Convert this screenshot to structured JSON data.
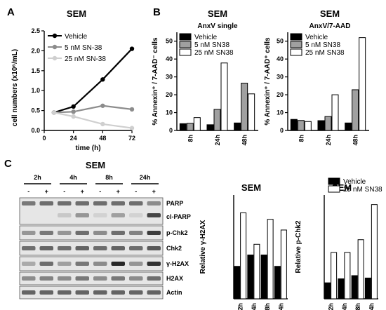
{
  "panels": {
    "A": {
      "letter": "A",
      "chart_data": {
        "type": "line",
        "title": "SEM",
        "xlabel": "time (h)",
        "ylabel": "cell numbers (x10⁶/mL)",
        "x": [
          8,
          24,
          48,
          72
        ],
        "xticks": [
          "0",
          "24",
          "48",
          "72"
        ],
        "yticks": [
          "0.0",
          "0.5",
          "1.0",
          "1.5",
          "2.0",
          "2.5"
        ],
        "xlim": [
          0,
          72
        ],
        "ylim": [
          0,
          2.5
        ],
        "legend_position": "top-left",
        "series": [
          {
            "name": "Vehicle",
            "values": [
              0.45,
              0.6,
              1.28,
              2.05
            ],
            "color": "#000000",
            "marker": "circle"
          },
          {
            "name": "5 nM SN-38",
            "values": [
              0.45,
              0.47,
              0.62,
              0.53
            ],
            "color": "#8c8c8c",
            "marker": "circle"
          },
          {
            "name": "25 nM SN-38",
            "values": [
              0.45,
              0.35,
              0.16,
              0.06
            ],
            "color": "#cfcfcf",
            "marker": "circle"
          }
        ]
      }
    },
    "B": {
      "letter": "B",
      "charts": [
        {
          "title": "SEM",
          "subtitle": "AnxV single",
          "chart_data": {
            "type": "bar",
            "ylabel": "% Annexin⁺ / 7-AAD⁻ cells",
            "categories": [
              "8h",
              "24h",
              "48h"
            ],
            "yticks": [
              "0",
              "10",
              "20",
              "30",
              "40",
              "50"
            ],
            "ylim": [
              0,
              55
            ],
            "legend_position": "top-left",
            "series": [
              {
                "name": "Vehicle",
                "values": [
                  3.8,
                  3.2,
                  4.2
                ],
                "color": "#000000"
              },
              {
                "name": "5 nM SN38",
                "values": [
                  4.0,
                  11.8,
                  26.5
                ],
                "color": "#a0a0a0"
              },
              {
                "name": "25 nM SN38",
                "values": [
                  7.2,
                  37.8,
                  20.5
                ],
                "color": "#ffffff"
              }
            ]
          }
        },
        {
          "title": "SEM",
          "subtitle": "AnxV/7-AAD",
          "chart_data": {
            "type": "bar",
            "ylabel": "% Annexin⁺ / 7-AAD⁺ cells",
            "categories": [
              "8h",
              "24h",
              "48h"
            ],
            "yticks": [
              "0",
              "10",
              "20",
              "30",
              "40",
              "50"
            ],
            "ylim": [
              0,
              55
            ],
            "legend_position": "top-left",
            "series": [
              {
                "name": "Vehicle",
                "values": [
                  6.2,
                  5.5,
                  4.2
                ],
                "color": "#000000"
              },
              {
                "name": "5 nM SN38",
                "values": [
                  5.6,
                  7.8,
                  22.8
                ],
                "color": "#a0a0a0"
              },
              {
                "name": "25 nM SN38",
                "values": [
                  5.0,
                  20.0,
                  52.0
                ],
                "color": "#ffffff"
              }
            ]
          }
        }
      ]
    },
    "C": {
      "letter": "C",
      "blot": {
        "title": "SEM",
        "timepoints": [
          "2h",
          "4h",
          "8h",
          "24h"
        ],
        "lane_signs": [
          "-",
          "+",
          "-",
          "+",
          "-",
          "+",
          "-",
          "+"
        ],
        "bands": [
          "PARP",
          "cl-PARP",
          "p-Chk2",
          "Chk2",
          "γ-H2AX",
          "H2AX",
          "Actin"
        ]
      },
      "charts": [
        {
          "title": "SEM",
          "chart_data": {
            "type": "bar",
            "ylabel": "Relative γ-H2AX",
            "categories": [
              "2h",
              "4h",
              "8h",
              "24h"
            ],
            "ylim": [
              0,
              3.2
            ],
            "series": [
              {
                "name": "Vehicle",
                "values": [
                  1.0,
                  1.35,
                  1.35,
                  1.0
                ],
                "color": "#000000"
              },
              {
                "name": "25 nM SN38",
                "values": [
                  2.65,
                  1.68,
                  2.45,
                  2.12
                ],
                "color": "#ffffff"
              }
            ]
          }
        },
        {
          "title": "SEM",
          "chart_data": {
            "type": "bar",
            "ylabel": "Relative p-Chk2",
            "categories": [
              "2h",
              "4h",
              "8h",
              "24h"
            ],
            "ylim": [
              0,
              6.5
            ],
            "legend_position": "top-left",
            "series": [
              {
                "name": "Vehicle",
                "values": [
                  1.0,
                  1.25,
                  1.45,
                  1.3
                ],
                "color": "#000000"
              },
              {
                "name": "25 nM SN38",
                "values": [
                  2.9,
                  2.9,
                  3.7,
                  5.9
                ],
                "color": "#ffffff"
              }
            ]
          }
        }
      ]
    }
  }
}
